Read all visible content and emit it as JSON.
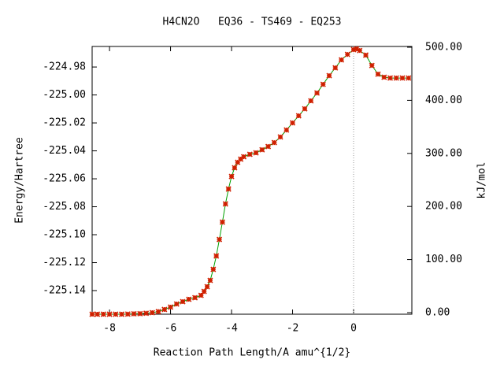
{
  "chart_data": {
    "type": "line",
    "title": "H4CN2O   EQ36 - TS469 - EQ253",
    "x_label": "Reaction Path Length/A amu^{1/2}",
    "y_label": "Energy/Hartree",
    "y2_label": "kJ/mol",
    "x": [
      -8.57,
      -8.4,
      -8.2,
      -8.0,
      -7.8,
      -7.6,
      -7.4,
      -7.2,
      -7.0,
      -6.8,
      -6.6,
      -6.4,
      -6.2,
      -6.0,
      -5.8,
      -5.6,
      -5.4,
      -5.2,
      -5.0,
      -4.9,
      -4.8,
      -4.7,
      -4.6,
      -4.5,
      -4.4,
      -4.3,
      -4.2,
      -4.1,
      -4.0,
      -3.9,
      -3.8,
      -3.7,
      -3.6,
      -3.4,
      -3.2,
      -3.0,
      -2.8,
      -2.6,
      -2.4,
      -2.2,
      -2.0,
      -1.8,
      -1.6,
      -1.4,
      -1.2,
      -1.0,
      -0.8,
      -0.6,
      -0.4,
      -0.2,
      0.0,
      0.1,
      0.2,
      0.4,
      0.6,
      0.8,
      1.0,
      1.2,
      1.4,
      1.6,
      1.8
    ],
    "series": [
      {
        "line_color": "#00a000",
        "marker_color": "#d02000",
        "values": [
          -225.1569,
          -225.1569,
          -225.1569,
          -225.1569,
          -225.1569,
          -225.1569,
          -225.1568,
          -225.1566,
          -225.1565,
          -225.1562,
          -225.1558,
          -225.155,
          -225.1535,
          -225.1518,
          -225.1496,
          -225.1479,
          -225.1462,
          -225.1451,
          -225.1434,
          -225.1406,
          -225.1372,
          -225.1327,
          -225.1248,
          -225.1152,
          -225.1034,
          -225.091,
          -225.078,
          -225.0673,
          -225.0583,
          -225.0521,
          -225.0482,
          -225.0459,
          -225.0442,
          -225.0425,
          -225.0414,
          -225.0392,
          -225.0369,
          -225.0341,
          -225.0301,
          -225.0251,
          -225.02,
          -225.0149,
          -225.0099,
          -225.0042,
          -224.9986,
          -224.9924,
          -224.9862,
          -224.9806,
          -224.9749,
          -224.971,
          -224.9676,
          -224.967,
          -224.9682,
          -224.9715,
          -224.9789,
          -224.9851,
          -224.9873,
          -224.9879,
          -224.9879,
          -224.9879,
          -224.9879
        ]
      }
    ],
    "vline": 0,
    "xlim": [
      -8.57,
      1.91
    ],
    "ylim": [
      -225.1569,
      -224.9653
    ],
    "y2lim": [
      -3,
      501.5
    ],
    "xticks": [
      -8,
      -6,
      -4,
      -2,
      0
    ],
    "yticks": [
      -224.98,
      {
        "value": -225.0,
        "label": "-225.00"
      },
      -225.02,
      -225.04,
      -225.06,
      -225.08,
      {
        "value": -225.1,
        "label": "-225.10"
      },
      -225.12,
      -225.14
    ],
    "y2ticks": [
      {
        "value": 0,
        "label": "0.00"
      },
      {
        "value": 100,
        "label": "100.00"
      },
      {
        "value": 200,
        "label": "200.00"
      },
      {
        "value": 300,
        "label": "300.00"
      },
      {
        "value": 400,
        "label": "400.00"
      },
      {
        "value": 500,
        "label": "500.00"
      }
    ]
  }
}
